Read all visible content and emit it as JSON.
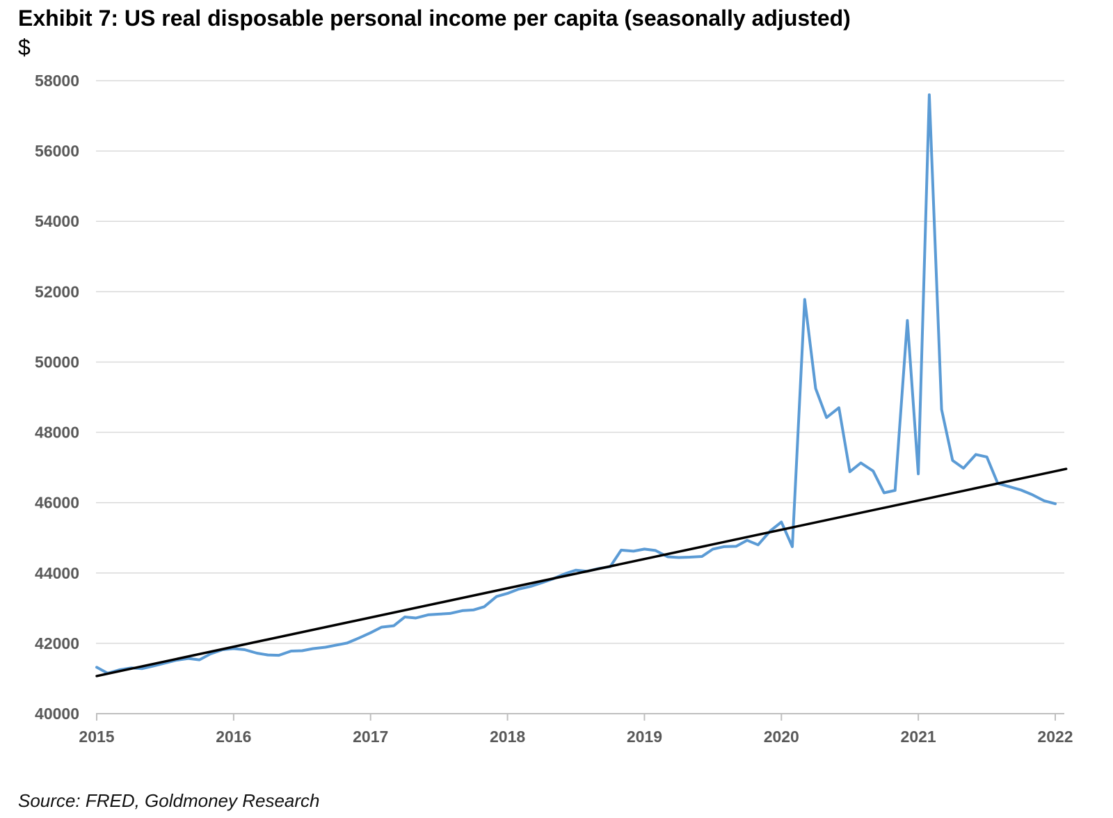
{
  "chart_data": {
    "type": "line",
    "title": "Exhibit 7: US real disposable personal income per capita (seasonally adjusted)",
    "ylabel": "$",
    "xlabel": "",
    "ylim": [
      40000,
      58000
    ],
    "yticks": [
      "58000",
      "56000",
      "54000",
      "52000",
      "50000",
      "48000",
      "46000",
      "44000",
      "42000",
      "40000"
    ],
    "xlim": [
      2015,
      2022.08
    ],
    "xticks": [
      "2015",
      "2016",
      "2017",
      "2018",
      "2019",
      "2020",
      "2021",
      "2022"
    ],
    "grid": "horizontal",
    "legend": "none",
    "series": [
      {
        "color": "#5b9bd5",
        "x": [
          2015.0,
          2015.08,
          2015.17,
          2015.25,
          2015.33,
          2015.42,
          2015.5,
          2015.58,
          2015.67,
          2015.75,
          2015.83,
          2015.92,
          2016.0,
          2016.08,
          2016.17,
          2016.25,
          2016.33,
          2016.42,
          2016.5,
          2016.58,
          2016.67,
          2016.75,
          2016.83,
          2016.92,
          2017.0,
          2017.08,
          2017.17,
          2017.25,
          2017.33,
          2017.42,
          2017.5,
          2017.58,
          2017.67,
          2017.75,
          2017.83,
          2017.92,
          2018.0,
          2018.08,
          2018.17,
          2018.25,
          2018.33,
          2018.42,
          2018.5,
          2018.58,
          2018.67,
          2018.75,
          2018.83,
          2018.92,
          2019.0,
          2019.08,
          2019.17,
          2019.25,
          2019.33,
          2019.42,
          2019.5,
          2019.58,
          2019.67,
          2019.75,
          2019.83,
          2019.92,
          2020.0,
          2020.08,
          2020.17,
          2020.25,
          2020.33,
          2020.42,
          2020.5,
          2020.58,
          2020.67,
          2020.75,
          2020.83,
          2020.92,
          2021.0,
          2021.08,
          2021.17,
          2021.25,
          2021.33,
          2021.42,
          2021.5,
          2021.58,
          2021.67,
          2021.75,
          2021.83,
          2021.92,
          2022.0
        ],
        "values": [
          41320,
          41150,
          41250,
          41300,
          41280,
          41360,
          41440,
          41520,
          41570,
          41530,
          41700,
          41820,
          41850,
          41820,
          41720,
          41670,
          41660,
          41780,
          41790,
          41850,
          41890,
          41950,
          42010,
          42160,
          42300,
          42460,
          42500,
          42750,
          42720,
          42810,
          42830,
          42850,
          42930,
          42950,
          43040,
          43330,
          43420,
          43540,
          43620,
          43720,
          43830,
          43980,
          44080,
          44050,
          44130,
          44180,
          44650,
          44620,
          44680,
          44640,
          44460,
          44440,
          44450,
          44470,
          44680,
          44750,
          44760,
          44930,
          44800,
          45200,
          45450,
          44750,
          51780,
          49250,
          48420,
          48700,
          46880,
          47130,
          46900,
          46280,
          46350,
          51180,
          46820,
          57600,
          48650,
          47200,
          46980,
          47370,
          47300,
          46550,
          46450,
          46360,
          46230,
          46050,
          45970
        ]
      },
      {
        "color": "#000000",
        "x": [
          2015.0,
          2022.08
        ],
        "values": [
          41070,
          46960
        ]
      }
    ]
  },
  "source": "Source: FRED, Goldmoney Research"
}
